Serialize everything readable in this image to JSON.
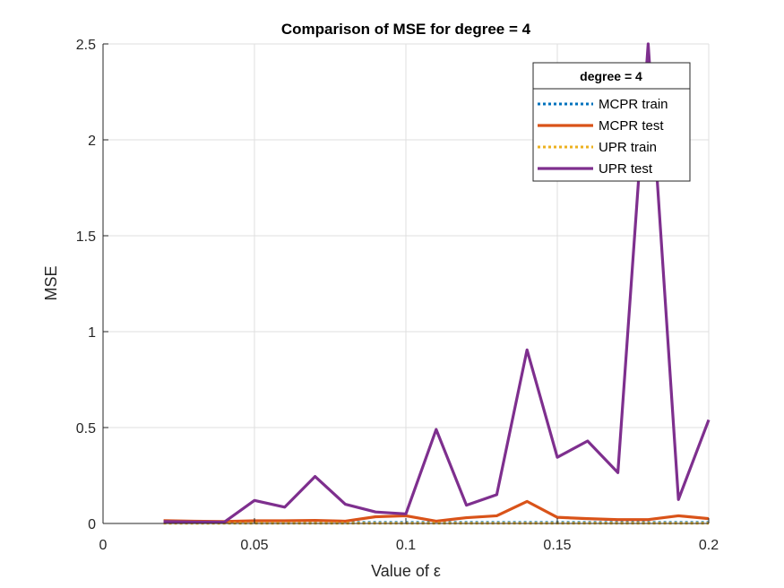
{
  "chart_data": {
    "type": "line",
    "title": "Comparison of MSE for degree = 4",
    "xlabel": "Value of ε",
    "ylabel": "MSE",
    "xlim": [
      0,
      0.2
    ],
    "ylim": [
      0,
      2.5
    ],
    "xticks": [
      0,
      0.05,
      0.1,
      0.15,
      0.2
    ],
    "xtick_labels": [
      "0",
      "0.05",
      "0.1",
      "0.15",
      "0.2"
    ],
    "yticks": [
      0,
      0.5,
      1,
      1.5,
      2,
      2.5
    ],
    "ytick_labels": [
      "0",
      "0.5",
      "1",
      "1.5",
      "2",
      "2.5"
    ],
    "grid": true,
    "legend": {
      "title": "degree = 4",
      "location": "top-right"
    },
    "x": [
      0.02,
      0.03,
      0.04,
      0.05,
      0.06,
      0.07,
      0.08,
      0.09,
      0.1,
      0.11,
      0.12,
      0.13,
      0.14,
      0.15,
      0.16,
      0.17,
      0.18,
      0.19,
      0.2
    ],
    "series": [
      {
        "name": "MCPR train",
        "color": "#0072BD",
        "style": "dotted",
        "values": [
          0.005,
          0.005,
          0.005,
          0.005,
          0.005,
          0.005,
          0.005,
          0.005,
          0.005,
          0.005,
          0.005,
          0.005,
          0.005,
          0.005,
          0.005,
          0.005,
          0.005,
          0.005,
          0.005
        ]
      },
      {
        "name": "MCPR test",
        "color": "#D95319",
        "style": "solid",
        "values": [
          0.015,
          0.012,
          0.01,
          0.014,
          0.014,
          0.016,
          0.012,
          0.035,
          0.04,
          0.012,
          0.03,
          0.04,
          0.115,
          0.032,
          0.025,
          0.02,
          0.02,
          0.04,
          0.025
        ]
      },
      {
        "name": "UPR train",
        "color": "#EDB120",
        "style": "dotted",
        "values": [
          0.001,
          0.001,
          0.001,
          0.001,
          0.001,
          0.001,
          0.001,
          0.001,
          0.001,
          0.001,
          0.001,
          0.001,
          0.001,
          0.001,
          0.001,
          0.001,
          0.001,
          0.001,
          0.001
        ]
      },
      {
        "name": "UPR test",
        "color": "#7E2F8E",
        "style": "solid",
        "values": [
          0.01,
          0.008,
          0.007,
          0.12,
          0.085,
          0.245,
          0.1,
          0.06,
          0.05,
          0.49,
          0.095,
          0.15,
          0.905,
          0.345,
          0.43,
          0.265,
          2.5,
          0.125,
          0.54
        ]
      }
    ]
  }
}
